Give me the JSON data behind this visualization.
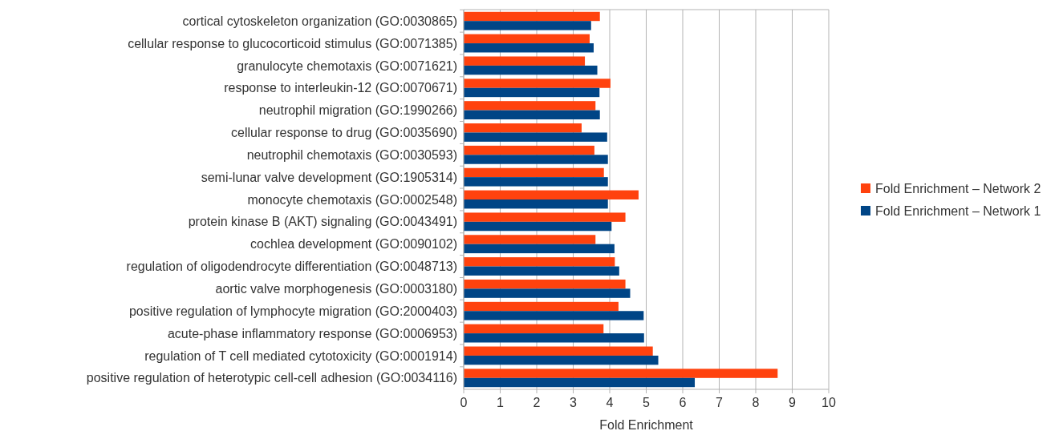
{
  "chart_data": {
    "type": "bar",
    "orientation": "horizontal",
    "xlabel": "Fold Enrichment",
    "categories": [
      "cortical cytoskeleton organization (GO:0030865)",
      "cellular response to glucocorticoid stimulus (GO:0071385)",
      "granulocyte chemotaxis (GO:0071621)",
      "response to interleukin-12 (GO:0070671)",
      "neutrophil migration (GO:1990266)",
      "cellular response to drug (GO:0035690)",
      "neutrophil chemotaxis (GO:0030593)",
      "semi-lunar valve development (GO:1905314)",
      "monocyte chemotaxis (GO:0002548)",
      "protein kinase B (AKT) signaling (GO:0043491)",
      "cochlea development (GO:0090102)",
      "regulation of oligodendrocyte differentiation (GO:0048713)",
      "aortic valve morphogenesis (GO:0003180)",
      "positive regulation of lymphocyte migration (GO:2000403)",
      "acute-phase inflammatory response (GO:0006953)",
      "regulation of T cell mediated cytotoxicity (GO:0001914)",
      "positive regulation of heterotypic cell-cell adhesion (GO:0034116)"
    ],
    "series": [
      {
        "name": "Fold Enrichment – Network 2",
        "color": "#ff420e",
        "values": [
          3.73,
          3.45,
          3.32,
          4.02,
          3.61,
          3.23,
          3.58,
          3.84,
          4.79,
          4.43,
          3.61,
          4.14,
          4.43,
          4.24,
          3.83,
          5.18,
          8.6
        ]
      },
      {
        "name": "Fold Enrichment – Network 1",
        "color": "#004586",
        "values": [
          3.49,
          3.56,
          3.66,
          3.72,
          3.73,
          3.93,
          3.95,
          3.95,
          3.95,
          4.05,
          4.13,
          4.26,
          4.56,
          4.93,
          4.94,
          5.33,
          6.33
        ]
      }
    ],
    "xlim": [
      0,
      10
    ],
    "xticks": [
      0,
      1,
      2,
      3,
      4,
      5,
      6,
      7,
      8,
      9,
      10
    ],
    "grid": "x",
    "legend": "right"
  }
}
